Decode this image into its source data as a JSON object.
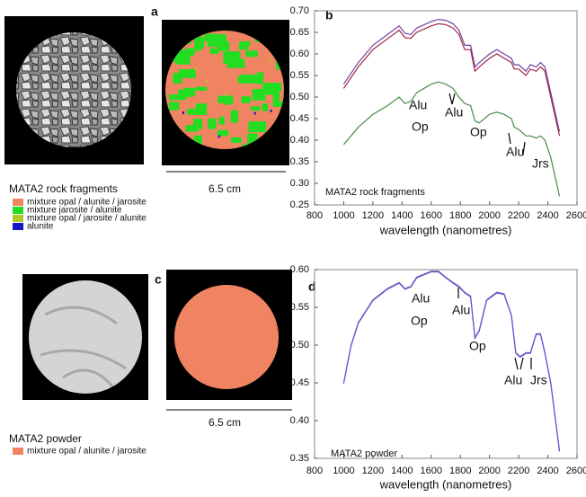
{
  "figure": {
    "panel_labels": [
      "a",
      "b",
      "c",
      "d"
    ],
    "top": {
      "title": "MATA2  rock fragments",
      "legend": [
        {
          "label": "mixture opal / alunite / jarosite",
          "color": "#f08462"
        },
        {
          "label": "mixture jarosite / alunite",
          "color": "#22dd22"
        },
        {
          "label": "mixture opal / jarosite /  alunite",
          "color": "#b0c828"
        },
        {
          "label": "alunite",
          "color": "#1414c8"
        }
      ],
      "scale": "6.5 cm"
    },
    "bottom": {
      "title": "MATA2  powder",
      "legend": [
        {
          "label": "mixture opal / alunite / jarosite",
          "color": "#f08462"
        }
      ],
      "scale": "6.5 cm"
    }
  },
  "chart_data": [
    {
      "type": "line",
      "xlabel": "wavelength (nanometres)",
      "inner_label": "MATA2  rock fragments",
      "annotations": [
        "Alu",
        "Op",
        "Alu",
        "Op",
        "Alu",
        "Jrs"
      ],
      "xlim": [
        800,
        2600
      ],
      "xticks": [
        800,
        1000,
        1200,
        1400,
        1600,
        1800,
        2000,
        2200,
        2400,
        2600
      ],
      "ylim": [
        0.25,
        0.7
      ],
      "yticks": [
        {
          "value": 0.7,
          "label": "0.70"
        },
        0.65,
        {
          "value": 0.6,
          "label": "0.60"
        },
        0.55,
        {
          "value": 0.5,
          "label": "0.50"
        },
        0.45,
        {
          "value": 0.4,
          "label": "0.40"
        },
        0.35,
        {
          "value": 0.3,
          "label": "0.30"
        },
        0.25
      ],
      "x": [
        1000,
        1100,
        1200,
        1300,
        1380,
        1420,
        1460,
        1500,
        1600,
        1650,
        1700,
        1750,
        1790,
        1830,
        1870,
        1900,
        1930,
        2000,
        2050,
        2100,
        2150,
        2170,
        2200,
        2250,
        2280,
        2320,
        2350,
        2380,
        2420,
        2480
      ],
      "series": [
        {
          "color": "#7040a0",
          "values": [
            0.53,
            0.58,
            0.62,
            0.645,
            0.665,
            0.648,
            0.645,
            0.66,
            0.675,
            0.68,
            0.678,
            0.67,
            0.655,
            0.62,
            0.62,
            0.57,
            0.58,
            0.6,
            0.61,
            0.6,
            0.59,
            0.575,
            0.575,
            0.56,
            0.575,
            0.57,
            0.58,
            0.57,
            0.51,
            0.42
          ]
        },
        {
          "color": "#a02848",
          "values": [
            0.52,
            0.57,
            0.61,
            0.635,
            0.655,
            0.638,
            0.636,
            0.65,
            0.665,
            0.67,
            0.668,
            0.66,
            0.645,
            0.61,
            0.61,
            0.56,
            0.57,
            0.59,
            0.6,
            0.59,
            0.58,
            0.565,
            0.565,
            0.55,
            0.565,
            0.56,
            0.57,
            0.56,
            0.5,
            0.41
          ]
        },
        {
          "color": "#4a8a4a",
          "values": [
            0.39,
            0.43,
            0.46,
            0.48,
            0.5,
            0.485,
            0.49,
            0.51,
            0.53,
            0.535,
            0.53,
            0.52,
            0.5,
            0.485,
            0.48,
            0.445,
            0.44,
            0.46,
            0.465,
            0.46,
            0.45,
            0.43,
            0.425,
            0.41,
            0.41,
            0.405,
            0.41,
            0.4,
            0.36,
            0.27
          ]
        }
      ]
    },
    {
      "type": "line",
      "xlabel": "wavelength (nanometres)",
      "inner_label": "MATA2  powder",
      "annotations": [
        "Alu",
        "Op",
        "Alu",
        "Op",
        "Alu",
        "Jrs"
      ],
      "xlim": [
        800,
        2600
      ],
      "xticks": [
        800,
        1000,
        1200,
        1400,
        1600,
        1800,
        2000,
        2200,
        2400,
        2600
      ],
      "ylim": [
        0.35,
        0.6
      ],
      "yticks": [
        {
          "value": 0.6,
          "label": "0.60"
        },
        0.55,
        {
          "value": 0.5,
          "label": "0.50"
        },
        0.45,
        {
          "value": 0.4,
          "label": "0.40"
        },
        0.35
      ],
      "x": [
        1000,
        1050,
        1100,
        1200,
        1300,
        1380,
        1420,
        1460,
        1500,
        1600,
        1650,
        1700,
        1750,
        1790,
        1830,
        1870,
        1900,
        1930,
        1980,
        2050,
        2100,
        2150,
        2180,
        2210,
        2250,
        2280,
        2320,
        2350,
        2380,
        2420,
        2480
      ],
      "series": [
        {
          "color": "#8a60a8",
          "values": [
            0.45,
            0.5,
            0.53,
            0.56,
            0.575,
            0.583,
            0.575,
            0.578,
            0.59,
            0.598,
            0.598,
            0.59,
            0.583,
            0.578,
            0.57,
            0.565,
            0.51,
            0.52,
            0.56,
            0.57,
            0.568,
            0.54,
            0.49,
            0.485,
            0.49,
            0.49,
            0.515,
            0.515,
            0.49,
            0.45,
            0.36
          ]
        },
        {
          "color": "#5a5ad8",
          "values": [
            0.449,
            0.499,
            0.529,
            0.559,
            0.574,
            0.582,
            0.574,
            0.577,
            0.589,
            0.597,
            0.597,
            0.589,
            0.582,
            0.577,
            0.569,
            0.564,
            0.509,
            0.519,
            0.559,
            0.569,
            0.567,
            0.539,
            0.489,
            0.484,
            0.489,
            0.489,
            0.514,
            0.514,
            0.489,
            0.449,
            0.359
          ]
        }
      ]
    }
  ]
}
